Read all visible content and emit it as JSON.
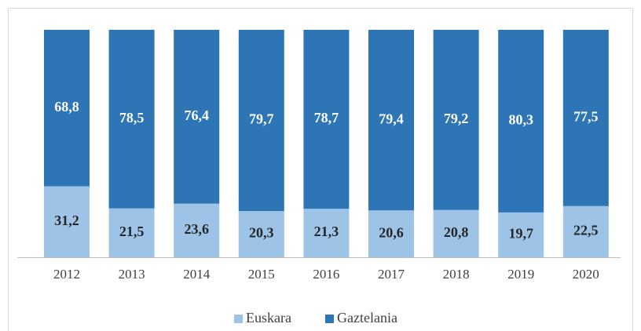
{
  "chart_data": {
    "type": "stacked_bar",
    "categories": [
      "2012",
      "2013",
      "2014",
      "2015",
      "2016",
      "2017",
      "2018",
      "2019",
      "2020"
    ],
    "series": [
      {
        "name": "Euskara",
        "color": "#9dc3e6",
        "values": [
          31.2,
          21.5,
          23.6,
          20.3,
          21.3,
          20.6,
          20.8,
          19.7,
          22.5
        ],
        "value_labels": [
          "31,2",
          "21,5",
          "23,6",
          "20,3",
          "21,3",
          "20,6",
          "20,8",
          "19,7",
          "22,5"
        ]
      },
      {
        "name": "Gaztelania",
        "color": "#2e75b6",
        "values": [
          68.8,
          78.5,
          76.4,
          79.7,
          78.7,
          79.4,
          79.2,
          80.3,
          77.5
        ],
        "value_labels": [
          "68,8",
          "78,5",
          "76,4",
          "79,7",
          "78,7",
          "79,4",
          "79,2",
          "80,3",
          "77,5"
        ]
      }
    ],
    "legend": "bottom"
  }
}
